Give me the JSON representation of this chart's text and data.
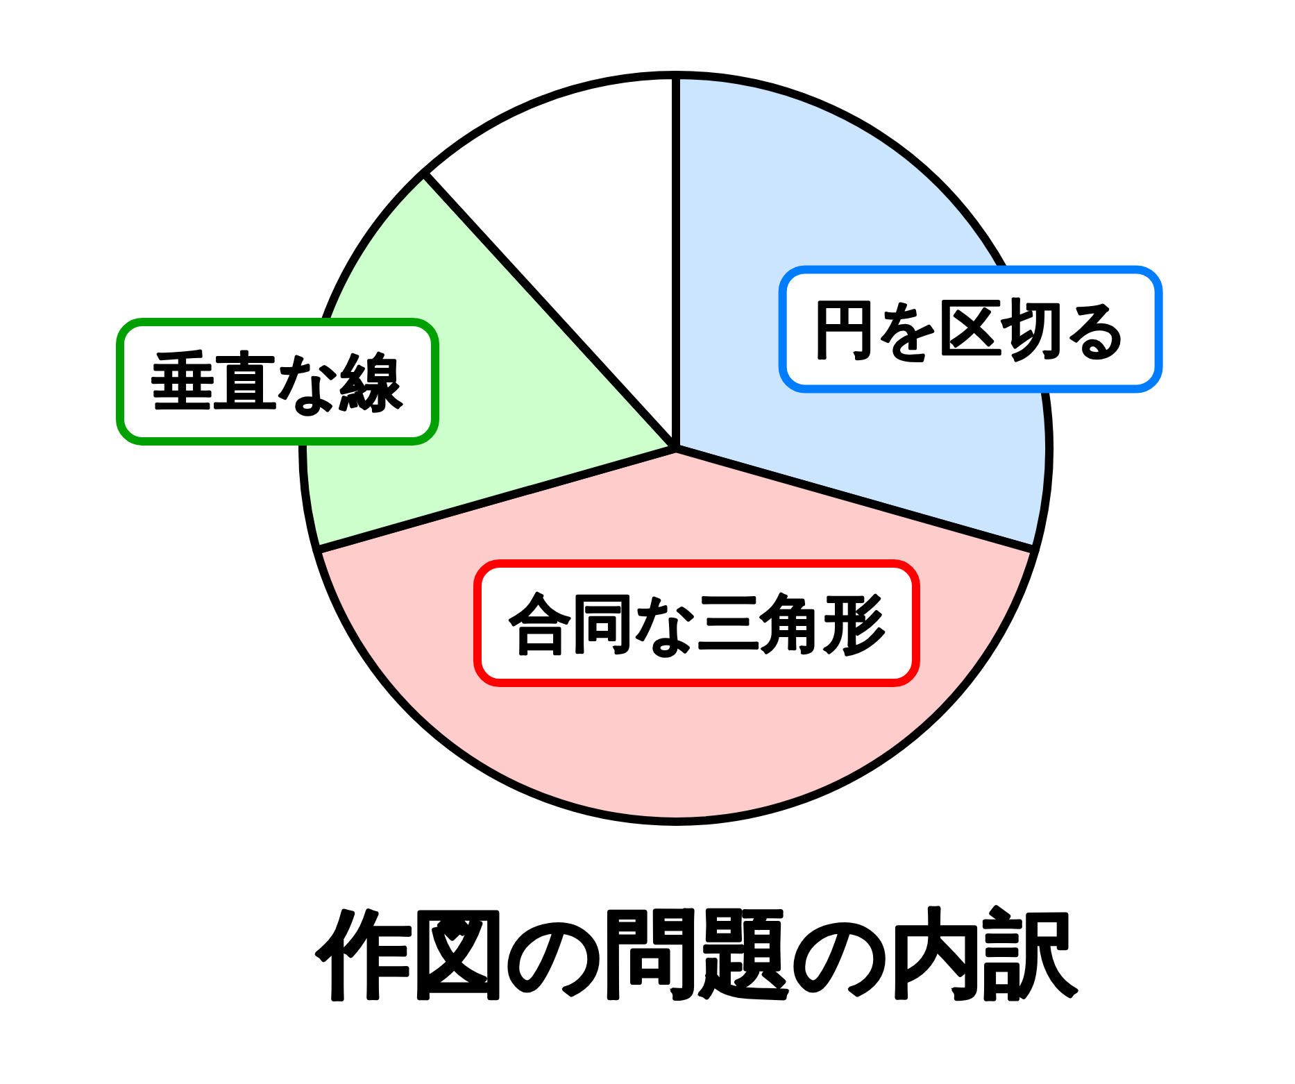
{
  "chart_data": {
    "type": "pie",
    "title": "作図の問題の内訳",
    "categories": [
      "円を区切る",
      "合同な三角形",
      "垂直な線",
      null
    ],
    "values": [
      29.4,
      41.2,
      17.6,
      11.8
    ],
    "colors": [
      "#cce5ff",
      "#ffcccc",
      "#ccffcc",
      "#ffffff"
    ],
    "legend": false
  }
}
